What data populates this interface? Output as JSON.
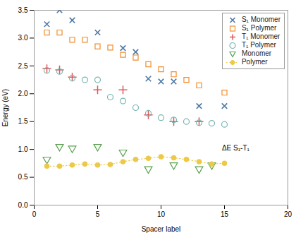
{
  "chart_data": {
    "type": "scatter",
    "xlabel": "Spacer label",
    "ylabel": "Energy (eV)",
    "xlim": [
      0,
      20
    ],
    "ylim": [
      0.0,
      3.5
    ],
    "xticks": [
      0,
      5,
      10,
      15,
      20
    ],
    "yticks": [
      {
        "value": 0.0,
        "label": "0.0"
      },
      0.5,
      {
        "value": 1.0,
        "label": "1.0"
      },
      1.5,
      {
        "value": 2.0,
        "label": "2.0"
      },
      2.5,
      {
        "value": 3.0,
        "label": "3.0"
      },
      3.5
    ],
    "grid": false,
    "legend": "upper right",
    "annotations": [
      {
        "text": "ΔE S₁-T₁",
        "x": 14.8,
        "y": 1.02
      }
    ],
    "series": [
      {
        "name": "S₁ Monomer",
        "type": "scatter",
        "marker": "x",
        "x": [
          1,
          2,
          3,
          5,
          7,
          8,
          9,
          10,
          11,
          13,
          15
        ],
        "values": [
          3.25,
          3.5,
          3.32,
          3.1,
          2.82,
          2.75,
          2.27,
          2.22,
          2.22,
          1.78,
          1.78
        ]
      },
      {
        "name": "S₁ Polymer",
        "type": "scatter",
        "marker": "square",
        "x": [
          1,
          2,
          3,
          4,
          5,
          6,
          7,
          8,
          9,
          10,
          11,
          12,
          13,
          15
        ],
        "values": [
          3.1,
          3.1,
          2.97,
          2.97,
          2.85,
          2.83,
          2.7,
          2.65,
          2.53,
          2.44,
          2.35,
          2.25,
          2.15,
          2.02
        ]
      },
      {
        "name": "T₁ Monomer",
        "type": "scatter",
        "marker": "plus",
        "x": [
          1,
          2,
          3,
          5,
          7,
          9,
          11,
          13
        ],
        "values": [
          2.45,
          2.43,
          2.3,
          2.07,
          2.07,
          1.62,
          1.5,
          1.5
        ]
      },
      {
        "name": "T₁ Polymer",
        "type": "scatter",
        "marker": "circle",
        "x": [
          1,
          2,
          3,
          4,
          5,
          6,
          7,
          8,
          9,
          10,
          11,
          12,
          13,
          14,
          15
        ],
        "values": [
          2.42,
          2.4,
          2.28,
          2.25,
          2.25,
          1.94,
          1.87,
          1.75,
          1.65,
          1.57,
          1.53,
          1.5,
          1.48,
          1.47,
          1.45
        ]
      },
      {
        "name": "Monomer",
        "type": "scatter",
        "marker": "triangle-down",
        "x": [
          1,
          2,
          3,
          5,
          7,
          9,
          11,
          13,
          14
        ],
        "values": [
          0.82,
          1.05,
          1.02,
          1.05,
          0.95,
          0.65,
          0.72,
          0.65,
          0.72
        ]
      },
      {
        "name": "Polymer",
        "type": "line",
        "marker": "dot",
        "line_style": "dotted",
        "x": [
          1,
          2,
          3,
          4,
          5,
          6,
          7,
          8,
          9,
          10,
          11,
          12,
          13,
          14,
          15
        ],
        "values": [
          0.7,
          0.7,
          0.72,
          0.74,
          0.72,
          0.73,
          0.78,
          0.82,
          0.84,
          0.87,
          0.85,
          0.82,
          0.78,
          0.74,
          0.75
        ]
      }
    ]
  }
}
